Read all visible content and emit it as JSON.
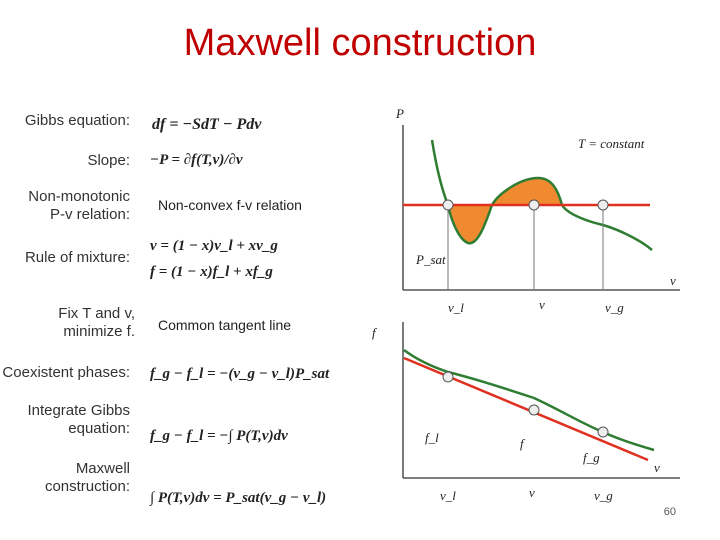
{
  "title": "Maxwell construction",
  "labels": {
    "gibbs": "Gibbs equation:",
    "slope": "Slope:",
    "nonmono": "Non-monotonic P-v relation:",
    "rule": "Rule of mixture:",
    "fix": "Fix T and v, minimize f.",
    "coexist": "Coexistent phases:",
    "integrate": "Integrate Gibbs equation:",
    "maxwell": "Maxwell construction:"
  },
  "equations": {
    "gibbs": "df = −SdT − Pdv",
    "slope": "−P = ∂f(T,v)/∂v",
    "rule_v": "v = (1 − x)v_l + xv_g",
    "rule_f": "f = (1 − x)f_l + xf_g",
    "coexist": "f_g − f_l = −(v_g − v_l)P_sat",
    "integrate": "f_g − f_l = −∫ P(T,v)dv",
    "maxwell": "∫ P(T,v)dv = P_sat(v_g − v_l)"
  },
  "notes": {
    "nonconvex": "Non-convex f-v relation",
    "tangent": "Common tangent line"
  },
  "top_graph": {
    "y_axis": "P",
    "x_axis": "v",
    "curve_label": "T = constant",
    "psat": "P_sat",
    "ticks": [
      "v_l",
      "v",
      "v_g"
    ]
  },
  "bottom_graph": {
    "y_axis": "f",
    "x_axis": "v",
    "point_labels": [
      "f_l",
      "f",
      "f_g"
    ],
    "ticks": [
      "v_l",
      "v",
      "v_g"
    ]
  },
  "page_number": "60",
  "colors": {
    "title": "#c00000",
    "curve": "#2e7d32",
    "line": "#e03020",
    "fill": "#f08a30"
  }
}
